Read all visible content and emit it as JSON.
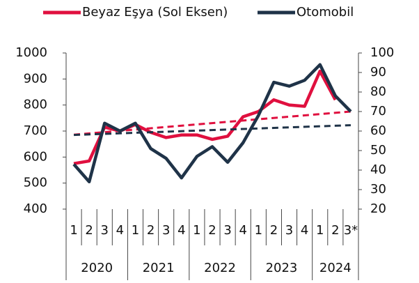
{
  "chart_data": {
    "type": "line",
    "categories": [
      "1",
      "2",
      "3",
      "4",
      "1",
      "2",
      "3",
      "4",
      "1",
      "2",
      "3",
      "4",
      "1",
      "2",
      "3",
      "4",
      "1",
      "2",
      "3*"
    ],
    "years": [
      "2020",
      "2021",
      "2022",
      "2023",
      "2024"
    ],
    "series": [
      {
        "name": "Beyaz Eşya (Sol Eksen)",
        "color": "#e0103f",
        "axis": "y",
        "values": [
          575,
          585,
          715,
          700,
          725,
          695,
          675,
          685,
          685,
          668,
          680,
          755,
          775,
          820,
          800,
          795,
          930,
          820,
          null
        ],
        "trend": [
          686,
          775
        ]
      },
      {
        "name": "Otomobil",
        "color": "#1f3348",
        "axis": "y2",
        "values": [
          43,
          34,
          64,
          60,
          64,
          51,
          46,
          36,
          47,
          52,
          44,
          54,
          68,
          85,
          83,
          86,
          94,
          78,
          70
        ],
        "trend": [
          58,
          63
        ]
      }
    ],
    "ylim": [
      400,
      1000
    ],
    "yticks": [
      400,
      500,
      600,
      700,
      800,
      900,
      1000
    ],
    "y2lim": [
      20,
      100
    ],
    "y2ticks": [
      20,
      30,
      40,
      50,
      60,
      70,
      80,
      90,
      100
    ]
  }
}
